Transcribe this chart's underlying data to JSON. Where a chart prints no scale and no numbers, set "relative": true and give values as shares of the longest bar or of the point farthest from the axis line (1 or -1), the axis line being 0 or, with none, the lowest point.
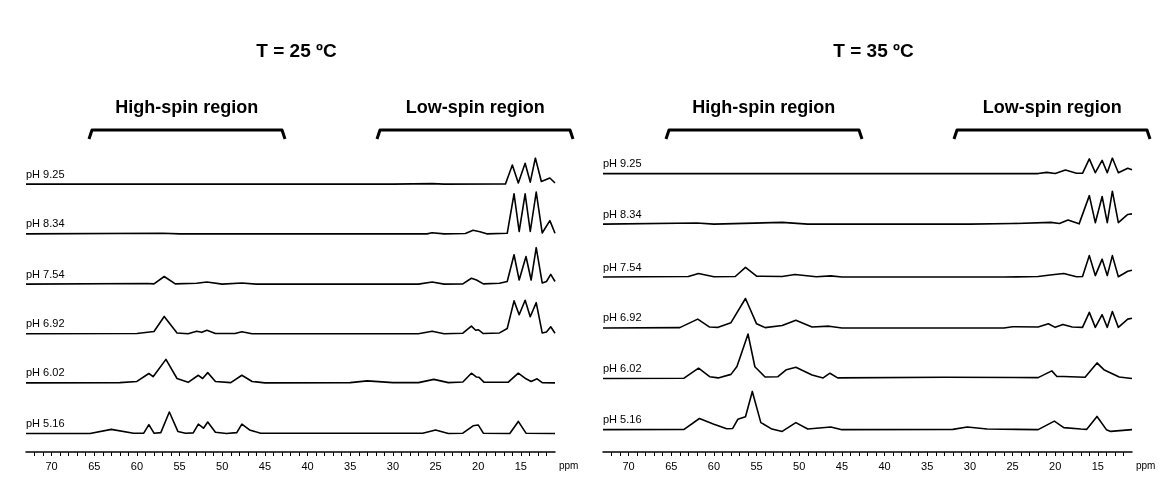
{
  "chart_data": [
    {
      "type": "line",
      "title": "T = 25 ºC",
      "xlabel": "ppm",
      "relative": true,
      "xlim": [
        73,
        11
      ],
      "xticks": [
        {
          "value": 12,
          "label": null
        },
        {
          "value": 13,
          "label": null
        },
        {
          "value": 14,
          "label": null
        },
        15,
        {
          "value": 16,
          "label": null
        },
        {
          "value": 17,
          "label": null
        },
        {
          "value": 18,
          "label": null
        },
        {
          "value": 19,
          "label": null
        },
        20,
        {
          "value": 21,
          "label": null
        },
        {
          "value": 22,
          "label": null
        },
        {
          "value": 23,
          "label": null
        },
        {
          "value": 24,
          "label": null
        },
        25,
        {
          "value": 26,
          "label": null
        },
        {
          "value": 27,
          "label": null
        },
        {
          "value": 28,
          "label": null
        },
        {
          "value": 29,
          "label": null
        },
        30,
        {
          "value": 31,
          "label": null
        },
        {
          "value": 32,
          "label": null
        },
        {
          "value": 33,
          "label": null
        },
        {
          "value": 34,
          "label": null
        },
        35,
        {
          "value": 36,
          "label": null
        },
        {
          "value": 37,
          "label": null
        },
        {
          "value": 38,
          "label": null
        },
        {
          "value": 39,
          "label": null
        },
        40,
        {
          "value": 41,
          "label": null
        },
        {
          "value": 42,
          "label": null
        },
        {
          "value": 43,
          "label": null
        },
        {
          "value": 44,
          "label": null
        },
        45,
        {
          "value": 46,
          "label": null
        },
        {
          "value": 47,
          "label": null
        },
        {
          "value": 48,
          "label": null
        },
        {
          "value": 49,
          "label": null
        },
        50,
        {
          "value": 51,
          "label": null
        },
        {
          "value": 52,
          "label": null
        },
        {
          "value": 53,
          "label": null
        },
        {
          "value": 54,
          "label": null
        },
        55,
        {
          "value": 56,
          "label": null
        },
        {
          "value": 57,
          "label": null
        },
        {
          "value": 58,
          "label": null
        },
        {
          "value": 59,
          "label": null
        },
        60,
        {
          "value": 61,
          "label": null
        },
        {
          "value": 62,
          "label": null
        },
        {
          "value": 63,
          "label": null
        },
        {
          "value": 64,
          "label": null
        },
        65,
        {
          "value": 66,
          "label": null
        },
        {
          "value": 67,
          "label": null
        },
        {
          "value": 68,
          "label": null
        },
        {
          "value": 69,
          "label": null
        },
        70,
        {
          "value": 71,
          "label": null
        },
        {
          "value": 72,
          "label": null
        }
      ],
      "annotations": [
        "High-spin region",
        "Low-spin region"
      ],
      "series": [
        {
          "name": "pH 9.25",
          "color": "#000000",
          "x": [
            73,
            30,
            25.4,
            24,
            16.8,
            16.0,
            15.3,
            14.5,
            13.9,
            13.3,
            12.6,
            11.6,
            11
          ],
          "values": [
            0.911,
            0.911,
            0.913,
            0.911,
            0.912,
            0.976,
            0.915,
            0.982,
            0.918,
            1.0,
            0.92,
            0.932,
            0.915
          ]
        },
        {
          "name": "pH 8.34",
          "color": "#000000",
          "x": [
            73,
            57,
            55,
            26,
            25.4,
            24,
            21.5,
            20.6,
            19.8,
            19,
            16.6,
            15.8,
            15.2,
            14.5,
            13.9,
            13.2,
            12.5,
            11.6,
            11
          ],
          "values": [
            0.742,
            0.744,
            0.742,
            0.742,
            0.746,
            0.742,
            0.743,
            0.754,
            0.749,
            0.742,
            0.744,
            0.878,
            0.75,
            0.878,
            0.75,
            0.884,
            0.745,
            0.787,
            0.744
          ]
        },
        {
          "name": "pH 7.54",
          "color": "#000000",
          "x": [
            73,
            58.8,
            58,
            56.8,
            55.5,
            53,
            51.8,
            50,
            47.7,
            46,
            27,
            25.4,
            24,
            21.8,
            20.8,
            20.2,
            19.4,
            17.5,
            16.6,
            15.8,
            15.2,
            14.4,
            13.8,
            13.2,
            12.5,
            12,
            11.5,
            11
          ],
          "values": [
            0.571,
            0.573,
            0.572,
            0.597,
            0.572,
            0.574,
            0.578,
            0.571,
            0.575,
            0.571,
            0.571,
            0.578,
            0.571,
            0.572,
            0.591,
            0.585,
            0.572,
            0.574,
            0.58,
            0.671,
            0.585,
            0.665,
            0.585,
            0.695,
            0.575,
            0.58,
            0.604,
            0.58
          ]
        },
        {
          "name": "pH 6.92",
          "color": "#000000",
          "x": [
            73,
            60,
            58,
            56.8,
            55.3,
            54,
            53,
            52.4,
            51.8,
            50.8,
            48.5,
            47.7,
            46.5,
            27,
            25.4,
            24,
            21.8,
            20.8,
            20.3,
            20.0,
            19.4,
            17.5,
            16.6,
            15.8,
            15.2,
            14.5,
            13.9,
            13.2,
            12.5,
            12,
            11.5,
            11
          ],
          "values": [
            0.402,
            0.403,
            0.41,
            0.461,
            0.405,
            0.402,
            0.411,
            0.407,
            0.414,
            0.403,
            0.403,
            0.409,
            0.402,
            0.402,
            0.411,
            0.402,
            0.404,
            0.428,
            0.414,
            0.416,
            0.403,
            0.405,
            0.42,
            0.514,
            0.467,
            0.516,
            0.46,
            0.508,
            0.405,
            0.408,
            0.426,
            0.404
          ]
        },
        {
          "name": "pH 6.02",
          "color": "#000000",
          "x": [
            73,
            62,
            60,
            58.6,
            58.1,
            56.6,
            55.3,
            54,
            52.8,
            52.3,
            51.7,
            50.8,
            49,
            47.7,
            46.5,
            45,
            35,
            33,
            30,
            27,
            25.2,
            23.5,
            21.8,
            20.8,
            20.2,
            19.9,
            19.3,
            16.5,
            15.3,
            14.4,
            13.8,
            13.1,
            12.5,
            11
          ],
          "values": [
            0.235,
            0.236,
            0.24,
            0.267,
            0.256,
            0.315,
            0.25,
            0.237,
            0.261,
            0.25,
            0.27,
            0.24,
            0.236,
            0.261,
            0.24,
            0.235,
            0.236,
            0.242,
            0.236,
            0.236,
            0.247,
            0.236,
            0.238,
            0.268,
            0.255,
            0.254,
            0.237,
            0.237,
            0.268,
            0.249,
            0.24,
            0.249,
            0.236,
            0.235
          ]
        },
        {
          "name": "pH 5.16",
          "color": "#000000",
          "x": [
            73,
            65.5,
            63,
            60.4,
            59.2,
            58.6,
            58.0,
            57.2,
            56.2,
            55.2,
            54.3,
            53.4,
            52.8,
            52.2,
            51.7,
            50.8,
            49.5,
            48.3,
            47.7,
            46.8,
            45.5,
            26.5,
            25.0,
            23.5,
            21.8,
            20.6,
            20.0,
            19.4,
            16.3,
            15.3,
            14.4,
            11
          ],
          "values": [
            0.063,
            0.063,
            0.077,
            0.064,
            0.064,
            0.093,
            0.064,
            0.066,
            0.136,
            0.07,
            0.064,
            0.065,
            0.095,
            0.081,
            0.102,
            0.067,
            0.063,
            0.066,
            0.095,
            0.075,
            0.064,
            0.064,
            0.075,
            0.063,
            0.064,
            0.089,
            0.092,
            0.064,
            0.063,
            0.104,
            0.064,
            0.063
          ]
        }
      ]
    },
    {
      "type": "line",
      "title": "T = 35 ºC",
      "xlabel": "ppm",
      "relative": true,
      "xlim": [
        73,
        11
      ],
      "xticks": [
        {
          "value": 12,
          "label": null
        },
        {
          "value": 13,
          "label": null
        },
        {
          "value": 14,
          "label": null
        },
        15,
        {
          "value": 16,
          "label": null
        },
        {
          "value": 17,
          "label": null
        },
        {
          "value": 18,
          "label": null
        },
        {
          "value": 19,
          "label": null
        },
        20,
        {
          "value": 21,
          "label": null
        },
        {
          "value": 22,
          "label": null
        },
        {
          "value": 23,
          "label": null
        },
        {
          "value": 24,
          "label": null
        },
        25,
        {
          "value": 26,
          "label": null
        },
        {
          "value": 27,
          "label": null
        },
        {
          "value": 28,
          "label": null
        },
        {
          "value": 29,
          "label": null
        },
        30,
        {
          "value": 31,
          "label": null
        },
        {
          "value": 32,
          "label": null
        },
        {
          "value": 33,
          "label": null
        },
        {
          "value": 34,
          "label": null
        },
        35,
        {
          "value": 36,
          "label": null
        },
        {
          "value": 37,
          "label": null
        },
        {
          "value": 38,
          "label": null
        },
        {
          "value": 39,
          "label": null
        },
        40,
        {
          "value": 41,
          "label": null
        },
        {
          "value": 42,
          "label": null
        },
        {
          "value": 43,
          "label": null
        },
        {
          "value": 44,
          "label": null
        },
        45,
        {
          "value": 46,
          "label": null
        },
        {
          "value": 47,
          "label": null
        },
        {
          "value": 48,
          "label": null
        },
        {
          "value": 49,
          "label": null
        },
        50,
        {
          "value": 51,
          "label": null
        },
        {
          "value": 52,
          "label": null
        },
        {
          "value": 53,
          "label": null
        },
        {
          "value": 54,
          "label": null
        },
        55,
        {
          "value": 56,
          "label": null
        },
        {
          "value": 57,
          "label": null
        },
        {
          "value": 58,
          "label": null
        },
        {
          "value": 59,
          "label": null
        },
        60,
        {
          "value": 61,
          "label": null
        },
        {
          "value": 62,
          "label": null
        },
        {
          "value": 63,
          "label": null
        },
        {
          "value": 64,
          "label": null
        },
        65,
        {
          "value": 66,
          "label": null
        },
        {
          "value": 67,
          "label": null
        },
        {
          "value": 68,
          "label": null
        },
        {
          "value": 69,
          "label": null
        },
        70,
        {
          "value": 71,
          "label": null
        },
        {
          "value": 72,
          "label": null
        }
      ],
      "annotations": [
        "High-spin region",
        "Low-spin region"
      ],
      "series": [
        {
          "name": "pH 9.25",
          "color": "#000000",
          "x": [
            73,
            22,
            21,
            20,
            18.8,
            17.5,
            16.8,
            16.0,
            15.3,
            14.5,
            13.9,
            13.3,
            12.6,
            11.5,
            11
          ],
          "values": [
            0.947,
            0.947,
            0.951,
            0.947,
            0.959,
            0.948,
            0.948,
            0.997,
            0.95,
            0.992,
            0.95,
            1.0,
            0.95,
            0.965,
            0.96
          ]
        },
        {
          "name": "pH 8.34",
          "color": "#000000",
          "x": [
            73,
            62,
            60,
            52,
            49,
            30,
            25,
            20.5,
            19.5,
            18.5,
            17.2,
            16.0,
            15.3,
            14.5,
            13.9,
            13.3,
            12.6,
            11.5,
            11
          ],
          "values": [
            0.775,
            0.779,
            0.775,
            0.781,
            0.775,
            0.775,
            0.777,
            0.781,
            0.777,
            0.789,
            0.776,
            0.872,
            0.78,
            0.869,
            0.78,
            0.887,
            0.78,
            0.808,
            0.81
          ]
        },
        {
          "name": "pH 7.54",
          "color": "#000000",
          "x": [
            73,
            63,
            61.8,
            60,
            57.5,
            56.3,
            55,
            52,
            50.5,
            48,
            46.3,
            45,
            26,
            22,
            20.6,
            19,
            17.5,
            16.8,
            16.0,
            15.3,
            14.5,
            13.9,
            13.3,
            12.6,
            11.5,
            11
          ],
          "values": [
            0.595,
            0.597,
            0.607,
            0.596,
            0.597,
            0.628,
            0.598,
            0.597,
            0.604,
            0.596,
            0.599,
            0.595,
            0.595,
            0.597,
            0.602,
            0.607,
            0.596,
            0.597,
            0.668,
            0.6,
            0.656,
            0.6,
            0.668,
            0.596,
            0.615,
            0.618
          ]
        },
        {
          "name": "pH 6.92",
          "color": "#000000",
          "x": [
            73,
            64,
            61.9,
            60.5,
            59.5,
            58,
            56.3,
            55.0,
            54,
            52,
            50.4,
            48.5,
            46.5,
            45,
            26,
            25,
            22,
            20.8,
            20,
            19.1,
            18,
            16.8,
            16.0,
            15.3,
            14.5,
            13.9,
            13.3,
            12.6,
            11.5,
            11
          ],
          "values": [
            0.422,
            0.423,
            0.452,
            0.425,
            0.424,
            0.44,
            0.522,
            0.436,
            0.423,
            0.43,
            0.448,
            0.425,
            0.428,
            0.422,
            0.422,
            0.426,
            0.425,
            0.436,
            0.424,
            0.434,
            0.425,
            0.424,
            0.475,
            0.424,
            0.467,
            0.424,
            0.478,
            0.424,
            0.452,
            0.455
          ]
        },
        {
          "name": "pH 6.02",
          "color": "#000000",
          "x": [
            73,
            63.5,
            61.8,
            60.5,
            59.5,
            58,
            57.3,
            56.0,
            55.2,
            54,
            52.5,
            51.5,
            50.4,
            48.5,
            47.2,
            46.4,
            45.5,
            33,
            22,
            20.4,
            19.8,
            19,
            16.5,
            15.1,
            14.3,
            12.5,
            11
          ],
          "values": [
            0.25,
            0.251,
            0.285,
            0.256,
            0.252,
            0.264,
            0.291,
            0.401,
            0.29,
            0.255,
            0.256,
            0.28,
            0.288,
            0.262,
            0.252,
            0.268,
            0.252,
            0.254,
            0.253,
            0.276,
            0.257,
            0.257,
            0.254,
            0.303,
            0.28,
            0.255,
            0.25
          ]
        },
        {
          "name": "pH 5.16",
          "color": "#000000",
          "x": [
            73,
            63.5,
            61.7,
            60,
            58.5,
            57.8,
            57.2,
            56.3,
            55.5,
            54.5,
            53.2,
            52,
            50.4,
            49,
            46.3,
            45,
            32,
            30.3,
            28,
            22,
            20.1,
            19,
            17,
            16.3,
            15.1,
            14,
            13.5,
            11
          ],
          "values": [
            0.076,
            0.077,
            0.114,
            0.094,
            0.079,
            0.08,
            0.111,
            0.12,
            0.206,
            0.1,
            0.078,
            0.07,
            0.1,
            0.078,
            0.085,
            0.076,
            0.077,
            0.085,
            0.078,
            0.076,
            0.105,
            0.083,
            0.078,
            0.077,
            0.121,
            0.076,
            0.07,
            0.076
          ]
        }
      ]
    }
  ]
}
